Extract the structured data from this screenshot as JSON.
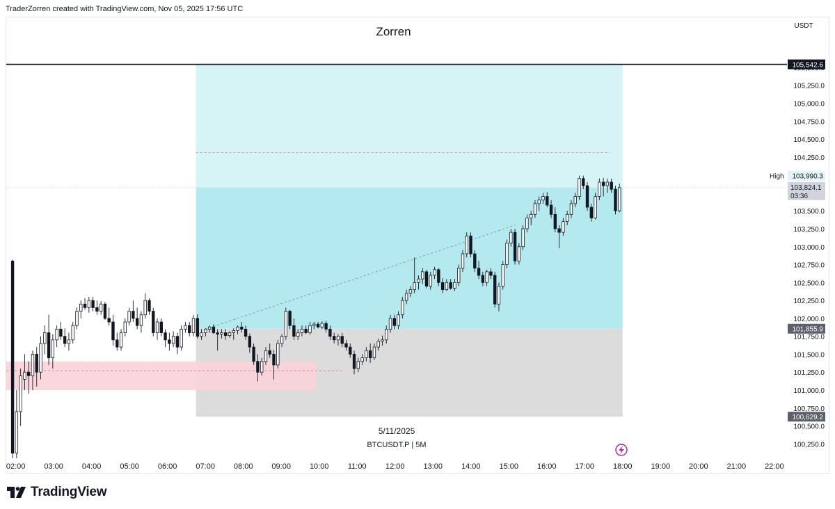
{
  "header": {
    "attribution": "TraderZorren created with TradingView.com, Nov 05, 2025 17:56 UTC",
    "chart_title": "Zorren"
  },
  "footer": {
    "brand": "TradingView"
  },
  "colors": {
    "up": "#ffffff",
    "down": "#131722",
    "target_zone": "#b3e9ef",
    "target_zone_upper": "#d6f3f6",
    "stop_zone": "#dcdcdc",
    "demand_zone": "#f9d3d8"
  },
  "chart_data": {
    "type": "candlestick",
    "title": "Zorren",
    "date_label": "5/11/2025",
    "symbol_label": "BTCUSDT.P | 5M",
    "currency": "USDT",
    "x_range": [
      "01:45",
      "22:20"
    ],
    "y_range": [
      100040,
      105800
    ],
    "x_ticks": [
      "02:00",
      "03:00",
      "04:00",
      "05:00",
      "06:00",
      "07:00",
      "08:00",
      "09:00",
      "10:00",
      "11:00",
      "12:00",
      "13:00",
      "14:00",
      "15:00",
      "16:00",
      "17:00",
      "18:00",
      "19:00",
      "20:00",
      "21:00",
      "22:00"
    ],
    "y_ticks": [
      "100,250.0",
      "100,500.0",
      "100,750.0",
      "101,000.0",
      "101,250.0",
      "101,500.0",
      "101,750.0",
      "102,000.0",
      "102,250.0",
      "102,500.0",
      "102,750.0",
      "103,000.0",
      "103,250.0",
      "103,500.0",
      "103,750.0",
      "104,000.0",
      "104,250.0",
      "104,500.0",
      "104,750.0",
      "105,000.0",
      "105,250.0",
      "105,500.0"
    ],
    "price_labels": {
      "horizontal_line": "105,542.6",
      "high_tag": "High",
      "high_value": "103,990.3",
      "last_price": "103,824.1",
      "countdown": "03:36",
      "entry": "101,855.9",
      "stop": "100,629.2"
    },
    "levels": {
      "horizontal_line": 105542.6,
      "high": 103990.3,
      "last": 103824.1,
      "entry": 101855.9,
      "stop": 100629.2,
      "target": 105542.6,
      "dashed_target": 104310,
      "demand_zone": [
        101000,
        101400
      ],
      "demand_mid": 101270
    },
    "position_tool": {
      "start": "06:45",
      "end": "18:00"
    },
    "demand_zone_time": [
      "01:45",
      "09:55"
    ],
    "grid": false,
    "candles": [
      [
        102800,
        102820,
        100050,
        100120
      ],
      [
        100120,
        101000,
        100050,
        100700
      ],
      [
        100700,
        101300,
        100500,
        101200
      ],
      [
        101150,
        101500,
        101000,
        101250
      ],
      [
        101250,
        101400,
        100950,
        101200
      ],
      [
        101200,
        101550,
        101000,
        101500
      ],
      [
        101500,
        101600,
        101050,
        101250
      ],
      [
        101250,
        101750,
        101150,
        101650
      ],
      [
        101650,
        101900,
        101500,
        101800
      ],
      [
        101800,
        102050,
        101350,
        101450
      ],
      [
        101450,
        101780,
        101300,
        101700
      ],
      [
        101700,
        101900,
        101600,
        101850
      ],
      [
        101850,
        101950,
        101700,
        101750
      ],
      [
        101750,
        101860,
        101600,
        101650
      ],
      [
        101650,
        101800,
        101550,
        101700
      ],
      [
        101700,
        101950,
        101650,
        101900
      ],
      [
        101900,
        102150,
        101850,
        102100
      ],
      [
        102100,
        102250,
        102000,
        102200
      ],
      [
        102200,
        102280,
        102120,
        102150
      ],
      [
        102150,
        102300,
        102080,
        102250
      ],
      [
        102250,
        102300,
        102100,
        102150
      ],
      [
        102150,
        102250,
        102050,
        102100
      ],
      [
        102100,
        102240,
        102050,
        102200
      ],
      [
        102200,
        102230,
        101980,
        102000
      ],
      [
        102000,
        102150,
        101900,
        101950
      ],
      [
        101950,
        102050,
        101620,
        101700
      ],
      [
        101700,
        101800,
        101550,
        101600
      ],
      [
        101600,
        101850,
        101550,
        101800
      ],
      [
        101800,
        102000,
        101750,
        101950
      ],
      [
        101950,
        102150,
        101900,
        102100
      ],
      [
        102100,
        102250,
        101950,
        102000
      ],
      [
        102000,
        102150,
        101850,
        101900
      ],
      [
        101900,
        102100,
        101800,
        102050
      ],
      [
        102050,
        102350,
        102000,
        102250
      ],
      [
        102250,
        102280,
        102050,
        102100
      ],
      [
        102100,
        102150,
        101750,
        101800
      ],
      [
        101800,
        102000,
        101700,
        101950
      ],
      [
        101950,
        102000,
        101750,
        101800
      ],
      [
        101800,
        101850,
        101600,
        101700
      ],
      [
        101700,
        101800,
        101550,
        101650
      ],
      [
        101650,
        101820,
        101600,
        101750
      ],
      [
        101750,
        101800,
        101500,
        101600
      ],
      [
        101600,
        101900,
        101550,
        101850
      ],
      [
        101850,
        101950,
        101800,
        101900
      ],
      [
        101900,
        101950,
        101750,
        101800
      ],
      [
        101800,
        102050,
        101750,
        102000
      ],
      [
        102000,
        102060,
        101720,
        101750
      ],
      [
        101750,
        101850,
        101700,
        101800
      ],
      [
        101800,
        101860,
        101750,
        101850
      ],
      [
        101850,
        101900,
        101800,
        101880
      ],
      [
        101880,
        101920,
        101780,
        101800
      ],
      [
        101800,
        101850,
        101550,
        101780
      ],
      [
        101780,
        101850,
        101720,
        101800
      ],
      [
        101800,
        101850,
        101700,
        101760
      ],
      [
        101760,
        101820,
        101730,
        101800
      ],
      [
        101800,
        101860,
        101700,
        101830
      ],
      [
        101830,
        101900,
        101780,
        101880
      ],
      [
        101880,
        101950,
        101800,
        101850
      ],
      [
        101850,
        101900,
        101700,
        101750
      ],
      [
        101750,
        101790,
        101520,
        101600
      ],
      [
        101600,
        101650,
        101350,
        101400
      ],
      [
        101400,
        101500,
        101120,
        101250
      ],
      [
        101250,
        101450,
        101200,
        101400
      ],
      [
        101400,
        101600,
        101350,
        101550
      ],
      [
        101550,
        101650,
        101450,
        101500
      ],
      [
        101500,
        101560,
        101150,
        101350
      ],
      [
        101350,
        101700,
        101300,
        101650
      ],
      [
        101650,
        101780,
        101600,
        101750
      ],
      [
        101750,
        102150,
        101700,
        102100
      ],
      [
        102100,
        102120,
        101850,
        101900
      ],
      [
        101900,
        102000,
        101700,
        101750
      ],
      [
        101750,
        101850,
        101700,
        101800
      ],
      [
        101800,
        101900,
        101750,
        101850
      ],
      [
        101850,
        101900,
        101780,
        101800
      ],
      [
        101800,
        101950,
        101770,
        101900
      ],
      [
        101900,
        101950,
        101850,
        101920
      ],
      [
        101920,
        101950,
        101860,
        101880
      ],
      [
        101880,
        101960,
        101850,
        101930
      ],
      [
        101930,
        101970,
        101800,
        101850
      ],
      [
        101850,
        101900,
        101700,
        101750
      ],
      [
        101750,
        101800,
        101650,
        101700
      ],
      [
        101700,
        101780,
        101620,
        101750
      ],
      [
        101750,
        101800,
        101600,
        101650
      ],
      [
        101650,
        101700,
        101550,
        101600
      ],
      [
        101600,
        101650,
        101450,
        101500
      ],
      [
        101500,
        101550,
        101220,
        101300
      ],
      [
        101300,
        101450,
        101250,
        101400
      ],
      [
        101400,
        101500,
        101350,
        101450
      ],
      [
        101450,
        101600,
        101400,
        101550
      ],
      [
        101550,
        101650,
        101380,
        101450
      ],
      [
        101450,
        101650,
        101420,
        101600
      ],
      [
        101600,
        101720,
        101550,
        101680
      ],
      [
        101680,
        101760,
        101620,
        101700
      ],
      [
        101700,
        101900,
        101650,
        101850
      ],
      [
        101850,
        102050,
        101800,
        102000
      ],
      [
        102000,
        102050,
        101850,
        101900
      ],
      [
        101900,
        102100,
        101850,
        102050
      ],
      [
        102050,
        102300,
        102000,
        102250
      ],
      [
        102250,
        102400,
        102200,
        102350
      ],
      [
        102350,
        102450,
        102300,
        102400
      ],
      [
        102400,
        102850,
        102350,
        102500
      ],
      [
        102500,
        102600,
        102400,
        102550
      ],
      [
        102550,
        102700,
        102480,
        102650
      ],
      [
        102650,
        102680,
        102420,
        102450
      ],
      [
        102450,
        102650,
        102400,
        102600
      ],
      [
        102600,
        102720,
        102550,
        102680
      ],
      [
        102680,
        102700,
        102450,
        102500
      ],
      [
        102500,
        102560,
        102350,
        102400
      ],
      [
        102400,
        102550,
        102380,
        102500
      ],
      [
        102500,
        102550,
        102400,
        102420
      ],
      [
        102420,
        102550,
        102380,
        102500
      ],
      [
        102500,
        102750,
        102450,
        102700
      ],
      [
        102700,
        102950,
        102650,
        102900
      ],
      [
        102900,
        103200,
        102850,
        103150
      ],
      [
        103150,
        103200,
        102850,
        102900
      ],
      [
        102900,
        102950,
        102650,
        102700
      ],
      [
        102700,
        102800,
        102550,
        102600
      ],
      [
        102600,
        102650,
        102450,
        102500
      ],
      [
        102500,
        102680,
        102450,
        102650
      ],
      [
        102650,
        102700,
        102550,
        102600
      ],
      [
        102600,
        102650,
        102150,
        102200
      ],
      [
        102200,
        102500,
        102100,
        102450
      ],
      [
        102450,
        102800,
        102400,
        102750
      ],
      [
        102750,
        103100,
        102700,
        103050
      ],
      [
        103050,
        103250,
        103000,
        103200
      ],
      [
        103200,
        103250,
        102750,
        102800
      ],
      [
        102800,
        103050,
        102750,
        103000
      ],
      [
        103000,
        103300,
        102950,
        103250
      ],
      [
        103250,
        103450,
        103200,
        103400
      ],
      [
        103400,
        103500,
        103300,
        103450
      ],
      [
        103450,
        103650,
        103400,
        103600
      ],
      [
        103600,
        103700,
        103500,
        103650
      ],
      [
        103650,
        103750,
        103600,
        103700
      ],
      [
        103700,
        103760,
        103550,
        103580
      ],
      [
        103580,
        103650,
        103400,
        103450
      ],
      [
        103450,
        103550,
        103200,
        103250
      ],
      [
        103250,
        103300,
        102980,
        103200
      ],
      [
        103200,
        103400,
        103150,
        103350
      ],
      [
        103350,
        103500,
        103300,
        103450
      ],
      [
        103450,
        103650,
        103400,
        103600
      ],
      [
        103600,
        103750,
        103550,
        103700
      ],
      [
        103700,
        103990,
        103650,
        103950
      ],
      [
        103950,
        103990,
        103800,
        103850
      ],
      [
        103850,
        103900,
        103500,
        103550
      ],
      [
        103550,
        103600,
        103350,
        103400
      ],
      [
        103400,
        103750,
        103380,
        103700
      ],
      [
        103700,
        103950,
        103650,
        103900
      ],
      [
        103900,
        103960,
        103700,
        103850
      ],
      [
        103850,
        103950,
        103750,
        103900
      ],
      [
        103900,
        103950,
        103750,
        103800
      ],
      [
        103800,
        103850,
        103450,
        103500
      ],
      [
        103500,
        103880,
        103480,
        103824
      ]
    ]
  }
}
